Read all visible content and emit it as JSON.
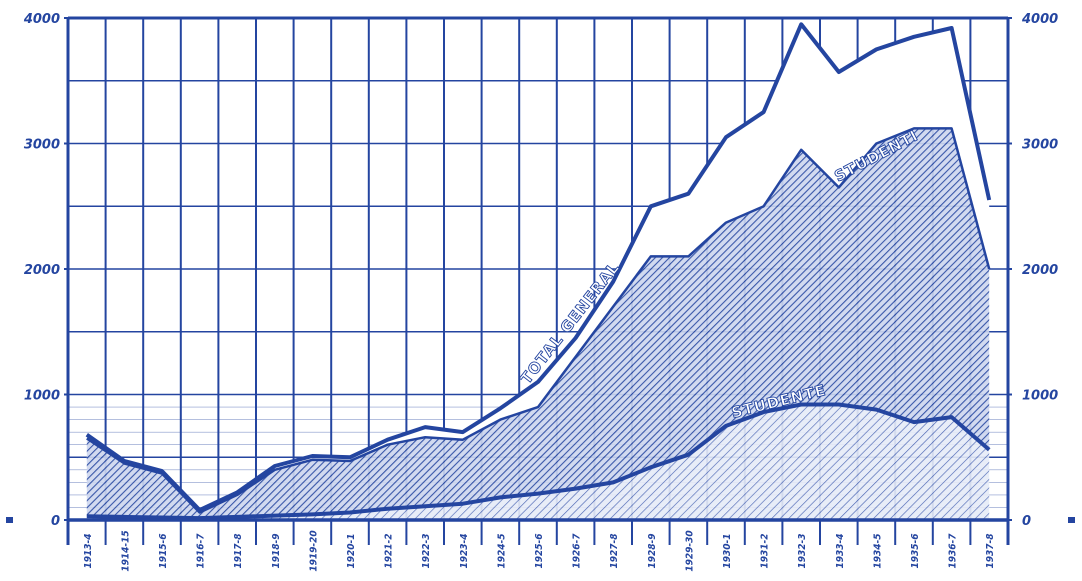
{
  "chart_data": {
    "type": "area",
    "categories": [
      "1913-4",
      "1914-15",
      "1915-6",
      "1916-7",
      "1917-8",
      "1918-9",
      "1919-20",
      "1920-1",
      "1921-2",
      "1922-3",
      "1923-4",
      "1924-5",
      "1925-6",
      "1926-7",
      "1927-8",
      "1928-9",
      "1929-30",
      "1930-1",
      "1931-2",
      "1932-3",
      "1933-4",
      "1934-5",
      "1935-6",
      "1936-7",
      "1937-8"
    ],
    "series": [
      {
        "name": "TOTAL GENERAL",
        "values": [
          680,
          470,
          390,
          80,
          220,
          430,
          510,
          500,
          640,
          740,
          700,
          890,
          1100,
          1450,
          1900,
          2500,
          2600,
          3050,
          3250,
          3950,
          3570,
          3750,
          3850,
          3920,
          2550
        ]
      },
      {
        "name": "STUDENTI",
        "values": [
          650,
          450,
          370,
          60,
          200,
          400,
          480,
          470,
          600,
          660,
          640,
          800,
          900,
          1300,
          1700,
          2100,
          2100,
          2370,
          2500,
          2950,
          2650,
          3000,
          3120,
          3120,
          2000
        ]
      },
      {
        "name": "STUDENTE",
        "values": [
          30,
          25,
          20,
          15,
          25,
          35,
          45,
          60,
          90,
          110,
          130,
          180,
          210,
          250,
          300,
          420,
          520,
          750,
          860,
          920,
          920,
          880,
          780,
          820,
          560
        ]
      }
    ],
    "annotations": [
      "TOTAL GENERAL",
      "STUDENTI",
      "STUDENTE"
    ],
    "ylim": [
      0,
      4000
    ],
    "yticks": [
      "0",
      "1000",
      "2000",
      "3000",
      "4000"
    ],
    "grid": true,
    "colors": {
      "line": "#2445a0",
      "fill": "#8d9fcf",
      "background": "#ffffff"
    }
  }
}
